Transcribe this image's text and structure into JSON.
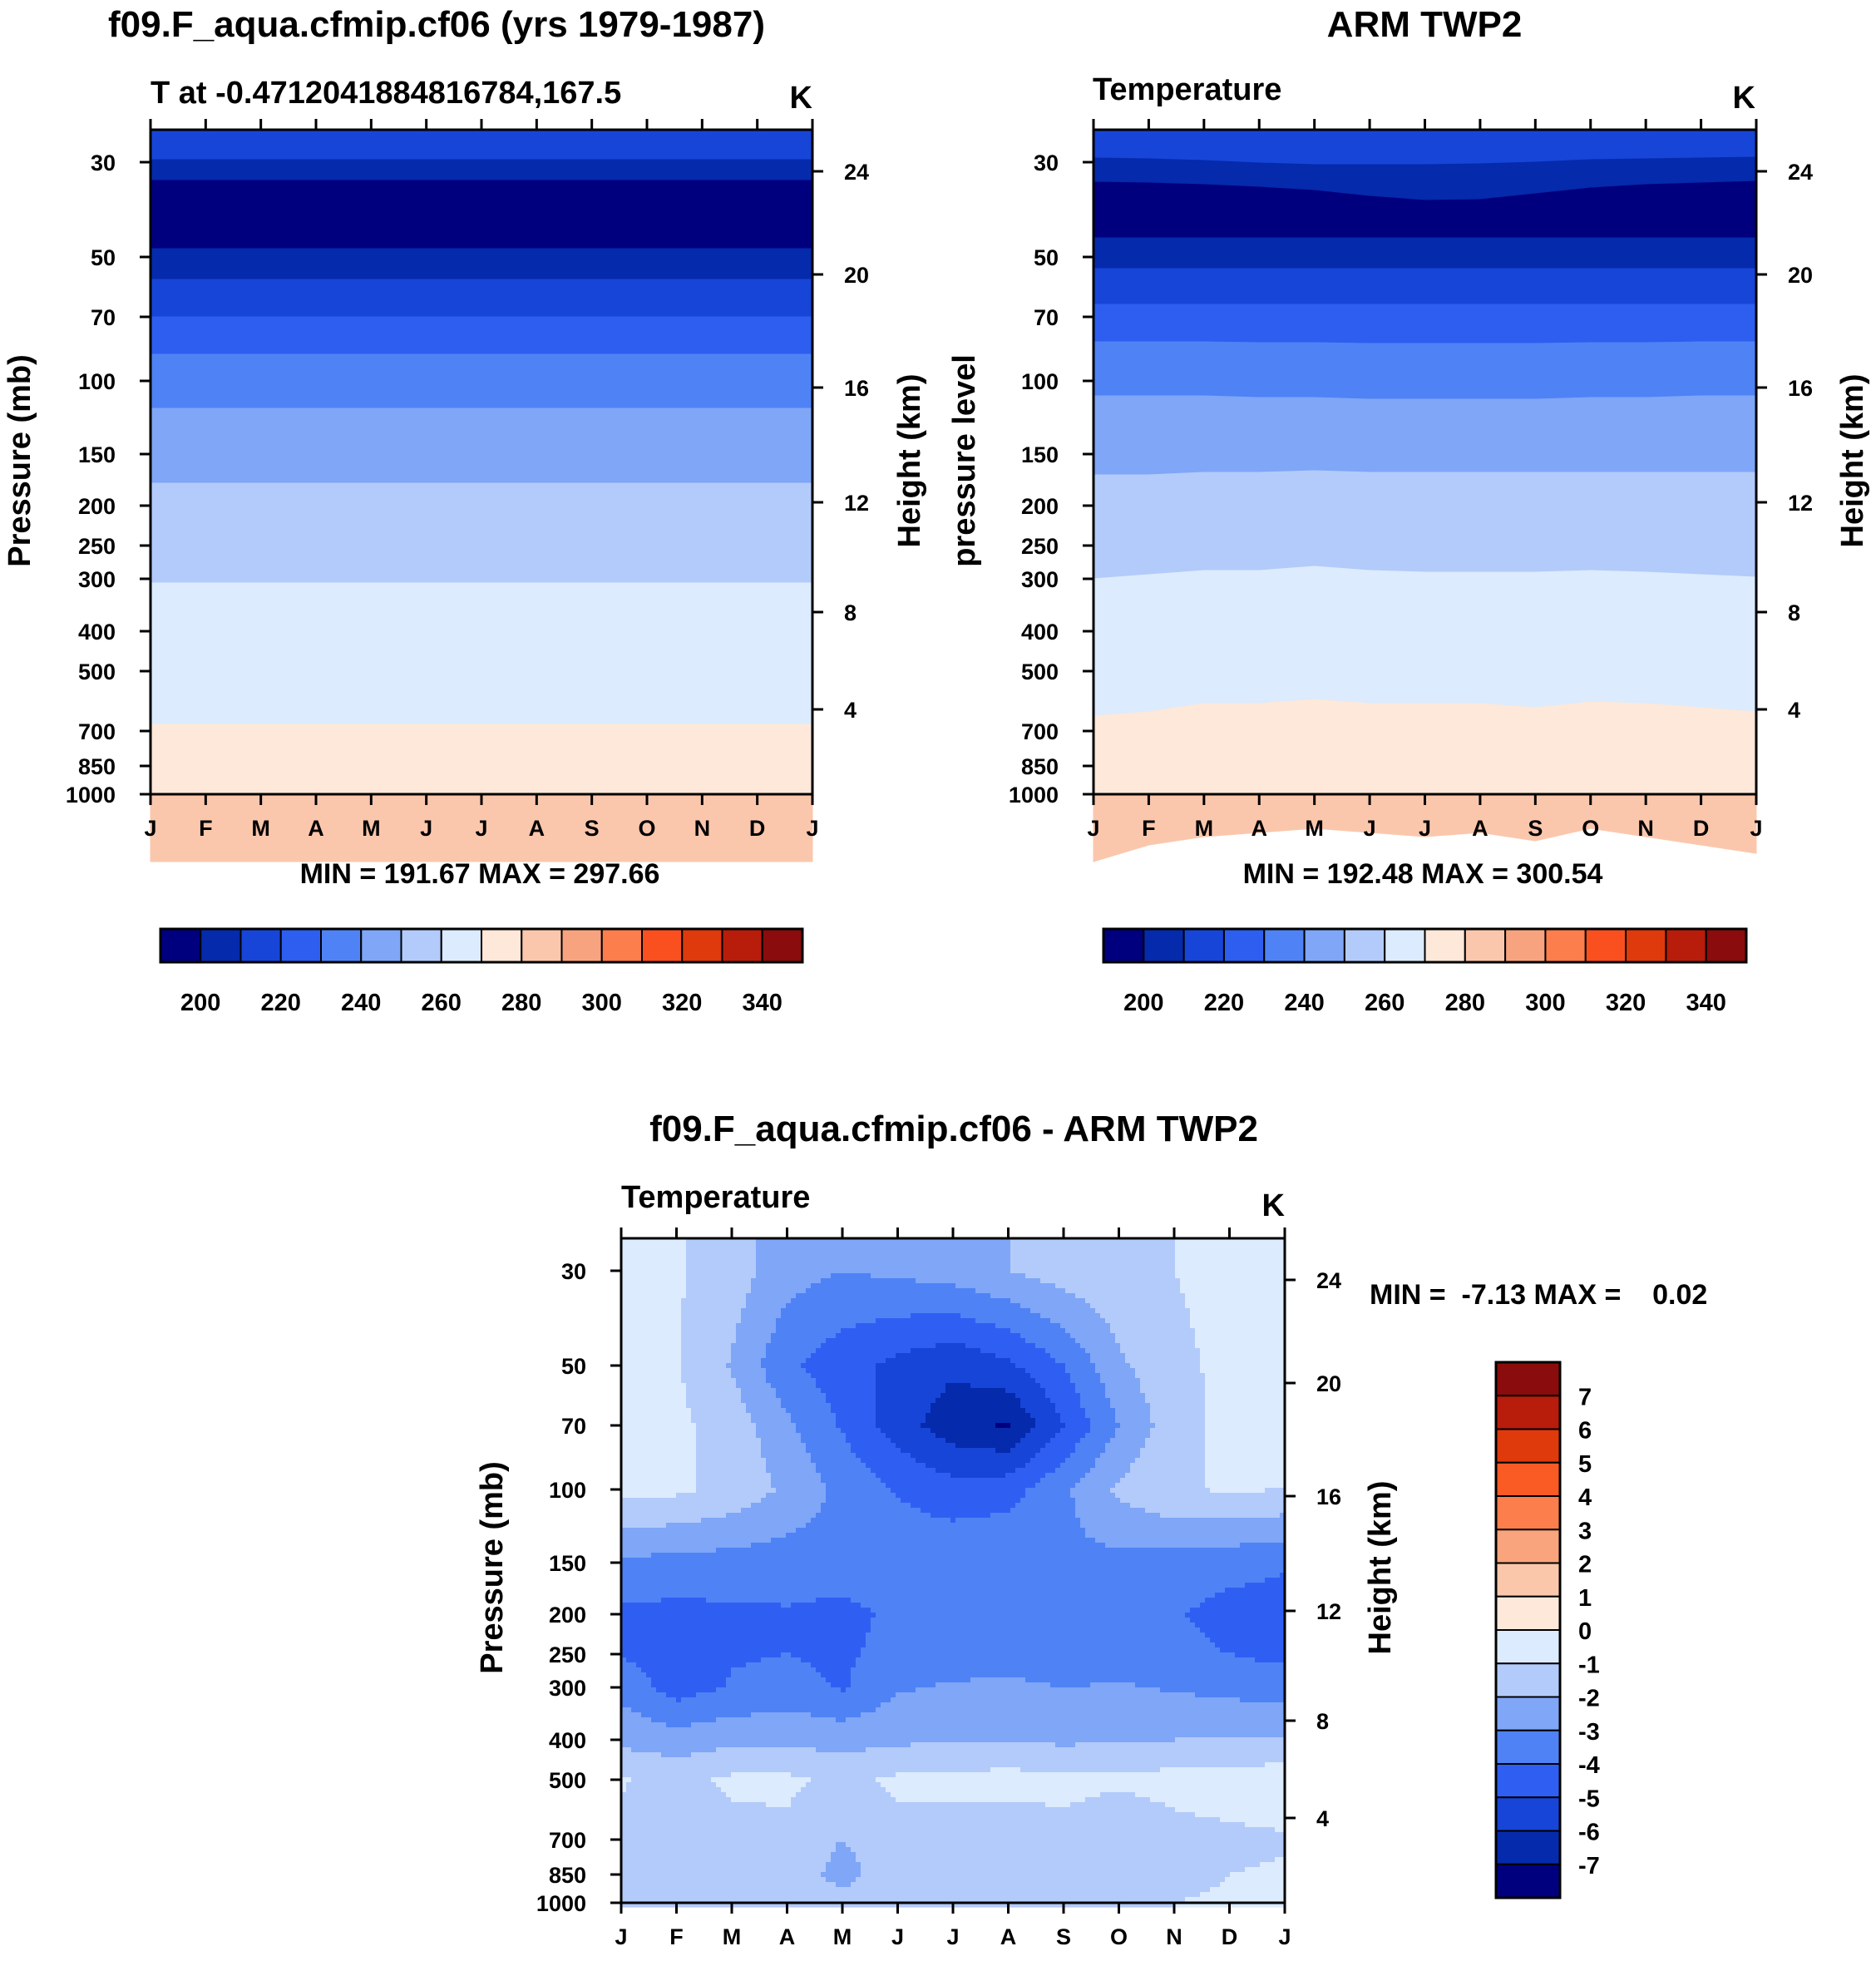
{
  "chart_data": [
    {
      "type": "heatmap",
      "title": "f09.F_aqua.cfmip.cf06 (yrs 1979-1987)",
      "subtitle": "T at -0.4712041884816784,167.5",
      "units": "K",
      "ylabel": "Pressure (mb)",
      "y2label": "Height (km)",
      "stats": "MIN = 191.67 MAX = 297.66",
      "months": [
        "J",
        "F",
        "M",
        "A",
        "M",
        "J",
        "J",
        "A",
        "S",
        "O",
        "N",
        "D",
        "J"
      ],
      "pressure_ticks": [
        "30",
        "50",
        "70",
        "100",
        "150",
        "200",
        "250",
        "300",
        "400",
        "500",
        "700",
        "850",
        "1000"
      ],
      "height_ticks": [
        "24",
        "20",
        "16",
        "12",
        "8",
        "4"
      ],
      "boundaries": [
        [
          36,
          36,
          36,
          36,
          36,
          36,
          36,
          36,
          36,
          36,
          36,
          36,
          36
        ],
        [
          61,
          61,
          61,
          61,
          61,
          61,
          61,
          61,
          61,
          61,
          61,
          61,
          61
        ],
        [
          143,
          143,
          143,
          143,
          143,
          143,
          143,
          143,
          143,
          143,
          143,
          143,
          143
        ],
        [
          180,
          180,
          180,
          180,
          180,
          180,
          180,
          180,
          180,
          180,
          180,
          180,
          180
        ],
        [
          225,
          225,
          225,
          225,
          225,
          225,
          225,
          225,
          225,
          225,
          225,
          225,
          225
        ],
        [
          270,
          270,
          270,
          270,
          270,
          270,
          270,
          270,
          270,
          270,
          270,
          270,
          270
        ],
        [
          335,
          335,
          335,
          335,
          335,
          335,
          335,
          335,
          335,
          335,
          335,
          335,
          335
        ],
        [
          425,
          425,
          425,
          425,
          425,
          425,
          425,
          425,
          425,
          425,
          425,
          425,
          425
        ],
        [
          545,
          545,
          545,
          545,
          545,
          545,
          545,
          545,
          545,
          545,
          545,
          545,
          545
        ],
        [
          715,
          715,
          715,
          715,
          715,
          715,
          715,
          715,
          715,
          715,
          715,
          715,
          715
        ],
        [
          880,
          880,
          880,
          880,
          880,
          880,
          880,
          880,
          880,
          880,
          880,
          880,
          880
        ]
      ],
      "band_colors": [
        "#1745d8",
        "#052aac",
        "#00007e",
        "#052aac",
        "#1745d8",
        "#2d5ef0",
        "#4f82f5",
        "#7fa6f7",
        "#b3cbfa",
        "#dcebfd",
        "#fde8d9",
        "#fbc7ac",
        "#f8a37f"
      ]
    },
    {
      "type": "heatmap",
      "title": "ARM TWP2",
      "subtitle": "Temperature",
      "units": "K",
      "ylabel": "pressure level",
      "y2label": "Height (km)",
      "stats": "MIN = 192.48 MAX = 300.54",
      "months": [
        "J",
        "F",
        "M",
        "A",
        "M",
        "J",
        "J",
        "A",
        "S",
        "O",
        "N",
        "D",
        "J"
      ],
      "pressure_ticks": [
        "30",
        "50",
        "70",
        "100",
        "150",
        "200",
        "250",
        "300",
        "400",
        "500",
        "700",
        "850",
        "1000"
      ],
      "height_ticks": [
        "24",
        "20",
        "16",
        "12",
        "8",
        "4"
      ],
      "boundaries": [
        [
          34,
          35,
          37,
          40,
          42,
          42,
          42,
          41,
          39,
          36,
          35,
          34,
          33
        ],
        [
          63,
          64,
          66,
          69,
          73,
          80,
          85,
          84,
          77,
          70,
          66,
          64,
          62
        ],
        [
          130,
          130,
          130,
          130,
          130,
          130,
          130,
          130,
          130,
          130,
          130,
          130,
          130
        ],
        [
          167,
          167,
          167,
          167,
          167,
          167,
          167,
          167,
          167,
          167,
          167,
          167,
          167
        ],
        [
          210,
          210,
          210,
          210,
          210,
          210,
          210,
          210,
          210,
          210,
          210,
          210,
          210
        ],
        [
          255,
          255,
          255,
          256,
          256,
          257,
          257,
          257,
          257,
          256,
          256,
          255,
          255
        ],
        [
          320,
          320,
          320,
          322,
          322,
          324,
          324,
          324,
          324,
          322,
          322,
          320,
          320
        ],
        [
          415,
          415,
          412,
          412,
          410,
          412,
          412,
          412,
          412,
          412,
          412,
          412,
          412
        ],
        [
          540,
          535,
          530,
          530,
          525,
          530,
          532,
          532,
          532,
          530,
          532,
          535,
          538
        ],
        [
          705,
          700,
          690,
          690,
          685,
          690,
          690,
          690,
          695,
          688,
          690,
          695,
          700
        ],
        [
          880,
          860,
          850,
          845,
          840,
          845,
          850,
          845,
          855,
          840,
          850,
          860,
          870
        ]
      ],
      "band_colors": [
        "#1745d8",
        "#052aac",
        "#00007e",
        "#052aac",
        "#1745d8",
        "#2d5ef0",
        "#4f82f5",
        "#7fa6f7",
        "#b3cbfa",
        "#dcebfd",
        "#fde8d9",
        "#fbc7ac",
        "#f8a37f"
      ]
    },
    {
      "type": "heatmap",
      "title": "f09.F_aqua.cfmip.cf06 - ARM TWP2",
      "subtitle": "Temperature",
      "units": "K",
      "ylabel": "Pressure (mb)",
      "y2label": "Height (km)",
      "stats": "MIN =  -7.13 MAX =    0.02",
      "months": [
        "J",
        "F",
        "M",
        "A",
        "M",
        "J",
        "J",
        "A",
        "S",
        "O",
        "N",
        "D",
        "J"
      ],
      "pressure_ticks": [
        "30",
        "50",
        "70",
        "100",
        "150",
        "200",
        "250",
        "300",
        "400",
        "500",
        "700",
        "850",
        "1000"
      ],
      "height_ticks": [
        "24",
        "20",
        "16",
        "12",
        "8",
        "4"
      ],
      "field": {
        "x": [
          0,
          1,
          2,
          3,
          4,
          5,
          6,
          7,
          8,
          9,
          10,
          11,
          12
        ],
        "p": [
          30,
          50,
          70,
          100,
          150,
          200,
          250,
          300,
          400,
          500,
          700,
          850,
          1000
        ],
        "values": [
          [
            -0.8,
            -0.9,
            -1.5,
            -2.6,
            -3.0,
            -2.8,
            -2.5,
            -2.0,
            -1.5,
            -1.2,
            -1.0,
            -0.7,
            -0.6
          ],
          [
            -0.7,
            -0.9,
            -2.1,
            -3.8,
            -4.6,
            -5.3,
            -5.8,
            -5.2,
            -4.0,
            -2.2,
            -1.2,
            -0.8,
            -0.6
          ],
          [
            -0.5,
            -0.8,
            -1.4,
            -2.8,
            -4.1,
            -5.5,
            -6.6,
            -7.1,
            -5.0,
            -3.0,
            -1.4,
            -0.7,
            -0.5
          ],
          [
            -0.7,
            -0.8,
            -1.3,
            -2.2,
            -3.3,
            -4.1,
            -4.6,
            -4.4,
            -3.2,
            -1.8,
            -1.1,
            -0.9,
            -1.0
          ],
          [
            -3.2,
            -3.3,
            -3.4,
            -3.5,
            -3.4,
            -3.3,
            -3.2,
            -3.1,
            -3.2,
            -3.3,
            -3.4,
            -3.6,
            -3.9
          ],
          [
            -4.2,
            -4.3,
            -4.2,
            -4.1,
            -4.3,
            -3.8,
            -3.6,
            -3.5,
            -3.6,
            -3.7,
            -3.9,
            -4.4,
            -4.4
          ],
          [
            -4.1,
            -4.4,
            -4.1,
            -4.0,
            -4.2,
            -3.6,
            -3.5,
            -3.4,
            -3.6,
            -3.5,
            -3.7,
            -4.0,
            -4.3
          ],
          [
            -3.3,
            -4.5,
            -3.9,
            -3.6,
            -4.1,
            -3.1,
            -2.9,
            -2.8,
            -3.0,
            -2.9,
            -3.1,
            -3.3,
            -3.4
          ],
          [
            -2.3,
            -2.5,
            -2.3,
            -2.2,
            -2.4,
            -2.2,
            -2.1,
            -2.1,
            -2.2,
            -2.1,
            -2.0,
            -2.0,
            -1.9
          ],
          [
            -0.9,
            -1.4,
            -0.8,
            -0.8,
            -1.3,
            -0.8,
            -0.7,
            -0.6,
            -0.7,
            -0.8,
            -0.6,
            -0.5,
            -0.4
          ],
          [
            -1.3,
            -1.9,
            -1.4,
            -1.2,
            -2.0,
            -1.3,
            -1.5,
            -1.8,
            -1.3,
            -1.9,
            -1.4,
            -1.2,
            -1.1
          ],
          [
            -1.2,
            -1.9,
            -1.3,
            -1.1,
            -2.5,
            -1.1,
            -1.5,
            -1.9,
            -1.2,
            -1.9,
            -1.2,
            -1.0,
            -0.9
          ],
          [
            -1.0,
            -1.2,
            -1.1,
            -1.0,
            -1.5,
            -1.0,
            -1.2,
            -1.3,
            -1.0,
            -1.2,
            -1.0,
            -0.9,
            -0.8
          ]
        ]
      },
      "colorbar_labels": [
        "7",
        "6",
        "5",
        "4",
        "3",
        "2",
        "1",
        "0",
        "-1",
        "-2",
        "-3",
        "-4",
        "-5",
        "-6",
        "-7"
      ],
      "colorbar_colors": [
        "#8a0c0c",
        "#b81c0a",
        "#de3a0c",
        "#fa5a24",
        "#fb7e4c",
        "#f9a47c",
        "#fbc7ab",
        "#fde8d9",
        "#dcebfd",
        "#b3cbfa",
        "#7fa6f7",
        "#4f82f5",
        "#2f5ff2",
        "#1745d8",
        "#052aac",
        "#00007e"
      ]
    }
  ],
  "colorbar_top": {
    "labels": [
      "200",
      "220",
      "240",
      "260",
      "280",
      "300",
      "320",
      "340"
    ],
    "colors": [
      "#00007e",
      "#052aac",
      "#1745d8",
      "#2d5ef0",
      "#4f82f5",
      "#7fa6f7",
      "#b3cbfa",
      "#dcebfd",
      "#fde8d9",
      "#fbc7ac",
      "#f8a37f",
      "#fb7e4c",
      "#fa5020",
      "#de3a0c",
      "#b81c0a",
      "#8a0c0c"
    ]
  }
}
